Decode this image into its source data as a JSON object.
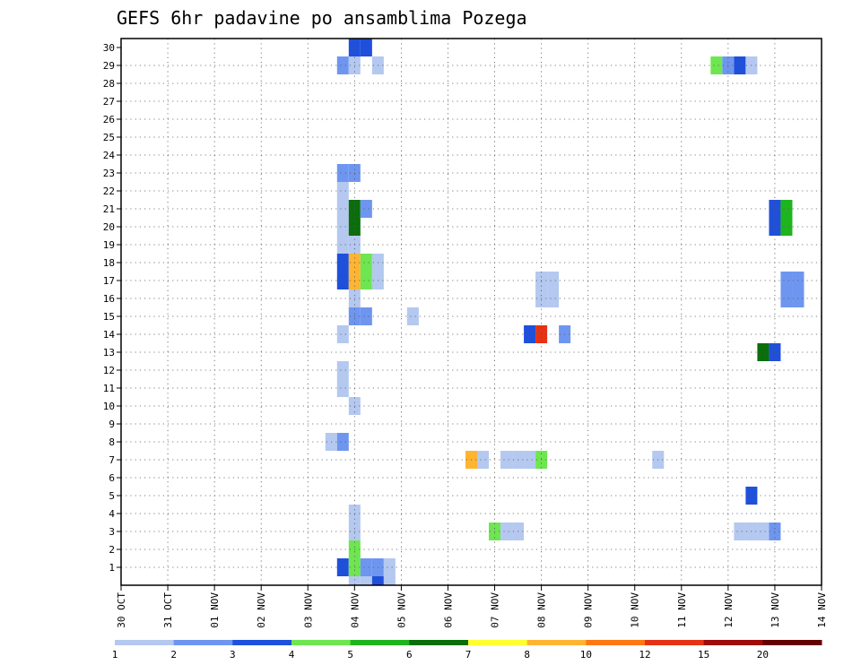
{
  "chart_data": {
    "type": "heatmap",
    "title": "GEFS 6hr padavine po ansamblima Pozega",
    "x_tick_labels": [
      "30 OCT",
      "31 OCT",
      "01 NOV",
      "02 NOV",
      "03 NOV",
      "04 NOV",
      "05 NOV",
      "06 NOV",
      "07 NOV",
      "08 NOV",
      "09 NOV",
      "10 NOV",
      "11 NOV",
      "12 NOV",
      "13 NOV",
      "14 NOV"
    ],
    "x_range_days": [
      0,
      15
    ],
    "x_step_days": 0.25,
    "y_tick_labels": [
      "1",
      "2",
      "3",
      "4",
      "5",
      "6",
      "7",
      "8",
      "9",
      "10",
      "11",
      "12",
      "13",
      "14",
      "15",
      "16",
      "17",
      "18",
      "19",
      "20",
      "21",
      "22",
      "23",
      "24",
      "25",
      "26",
      "27",
      "28",
      "29",
      "30"
    ],
    "y_range": [
      0,
      30
    ],
    "grid": true,
    "colorbar": {
      "labels": [
        "1",
        "2",
        "3",
        "4",
        "5",
        "6",
        "7",
        "8",
        "10",
        "12",
        "15",
        "20"
      ],
      "colors": [
        "#b4c8f0",
        "#6e96f0",
        "#1e50dc",
        "#6ee650",
        "#1eb41e",
        "#0a6e0a",
        "#ffff32",
        "#ffb432",
        "#ff7814",
        "#e63214",
        "#a00a0a",
        "#640000"
      ]
    },
    "cells": [
      {
        "m": 30,
        "t": [
          5,
          5.25
        ],
        "c": 3
      },
      {
        "m": 29,
        "t": [
          4.75
        ],
        "c": 2
      },
      {
        "m": 29,
        "t": [
          5
        ],
        "c": 1
      },
      {
        "m": 29,
        "t": [
          5.5
        ],
        "c": 1
      },
      {
        "m": 29,
        "t": [
          12.75
        ],
        "c": 4
      },
      {
        "m": 29,
        "t": [
          13
        ],
        "c": 2
      },
      {
        "m": 29,
        "t": [
          13.25
        ],
        "c": 3
      },
      {
        "m": 29,
        "t": [
          13.5
        ],
        "c": 1
      },
      {
        "m": 23,
        "t": [
          4.75,
          5
        ],
        "c": 2
      },
      {
        "m": 22,
        "t": [
          4.75
        ],
        "c": 1
      },
      {
        "m": 21,
        "t": [
          4.75
        ],
        "c": 1
      },
      {
        "m": 21,
        "t": [
          5
        ],
        "c": 6
      },
      {
        "m": 21,
        "t": [
          5.25
        ],
        "c": 2
      },
      {
        "m": 21,
        "t": [
          14
        ],
        "c": 3
      },
      {
        "m": 21,
        "t": [
          14.25
        ],
        "c": 5
      },
      {
        "m": 20,
        "t": [
          4.75
        ],
        "c": 1
      },
      {
        "m": 20,
        "t": [
          5
        ],
        "c": 6
      },
      {
        "m": 20,
        "t": [
          14
        ],
        "c": 3
      },
      {
        "m": 20,
        "t": [
          14.25
        ],
        "c": 5
      },
      {
        "m": 19,
        "t": [
          4.75,
          5
        ],
        "c": 1
      },
      {
        "m": 18,
        "t": [
          4.75
        ],
        "c": 3
      },
      {
        "m": 18,
        "t": [
          5
        ],
        "c": 8
      },
      {
        "m": 18,
        "t": [
          5.25
        ],
        "c": 4
      },
      {
        "m": 18,
        "t": [
          5.5
        ],
        "c": 1
      },
      {
        "m": 17,
        "t": [
          4.75
        ],
        "c": 3
      },
      {
        "m": 17,
        "t": [
          5
        ],
        "c": 8
      },
      {
        "m": 17,
        "t": [
          5.25
        ],
        "c": 4
      },
      {
        "m": 17,
        "t": [
          5.5
        ],
        "c": 1
      },
      {
        "m": 17,
        "t": [
          9,
          9.25
        ],
        "c": 1
      },
      {
        "m": 17,
        "t": [
          14.25,
          14.5
        ],
        "c": 2
      },
      {
        "m": 16,
        "t": [
          5
        ],
        "c": 1
      },
      {
        "m": 16,
        "t": [
          9,
          9.25
        ],
        "c": 1
      },
      {
        "m": 16,
        "t": [
          14.25,
          14.5
        ],
        "c": 2
      },
      {
        "m": 15,
        "t": [
          5,
          5.25
        ],
        "c": 2
      },
      {
        "m": 15,
        "t": [
          6.25
        ],
        "c": 1
      },
      {
        "m": 14,
        "t": [
          4.75
        ],
        "c": 1
      },
      {
        "m": 14,
        "t": [
          8.75
        ],
        "c": 3
      },
      {
        "m": 14,
        "t": [
          9
        ],
        "c": 10
      },
      {
        "m": 14,
        "t": [
          9.5
        ],
        "c": 2
      },
      {
        "m": 13,
        "t": [
          13.75
        ],
        "c": 6
      },
      {
        "m": 13,
        "t": [
          14
        ],
        "c": 3
      },
      {
        "m": 12,
        "t": [
          4.75
        ],
        "c": 1
      },
      {
        "m": 11,
        "t": [
          4.75
        ],
        "c": 1
      },
      {
        "m": 10,
        "t": [
          5
        ],
        "c": 1
      },
      {
        "m": 8,
        "t": [
          4.5
        ],
        "c": 1
      },
      {
        "m": 8,
        "t": [
          4.75
        ],
        "c": 2
      },
      {
        "m": 7,
        "t": [
          7.5
        ],
        "c": 8
      },
      {
        "m": 7,
        "t": [
          7.75
        ],
        "c": 1
      },
      {
        "m": 7,
        "t": [
          8.25,
          8.5,
          8.75
        ],
        "c": 1
      },
      {
        "m": 7,
        "t": [
          9
        ],
        "c": 4
      },
      {
        "m": 7,
        "t": [
          11.5
        ],
        "c": 1
      },
      {
        "m": 5,
        "t": [
          13.5
        ],
        "c": 3
      },
      {
        "m": 4,
        "t": [
          5
        ],
        "c": 1
      },
      {
        "m": 3,
        "t": [
          5
        ],
        "c": 1
      },
      {
        "m": 3,
        "t": [
          8
        ],
        "c": 4
      },
      {
        "m": 3,
        "t": [
          8.25,
          8.5
        ],
        "c": 1
      },
      {
        "m": 3,
        "t": [
          13.25,
          13.5,
          13.75
        ],
        "c": 1
      },
      {
        "m": 3,
        "t": [
          14
        ],
        "c": 2
      },
      {
        "m": 2,
        "t": [
          5
        ],
        "c": 4
      },
      {
        "m": 1,
        "t": [
          4.75
        ],
        "c": 3
      },
      {
        "m": 1,
        "t": [
          5
        ],
        "c": 4
      },
      {
        "m": 1,
        "t": [
          5.25,
          5.5
        ],
        "c": 2
      },
      {
        "m": 1,
        "t": [
          5.75
        ],
        "c": 1
      },
      {
        "m": 0,
        "t": [
          5
        ],
        "c": 1
      },
      {
        "m": 0,
        "t": [
          5.25
        ],
        "c": 1
      },
      {
        "m": 0,
        "t": [
          5.5
        ],
        "c": 3
      },
      {
        "m": 0,
        "t": [
          5.75
        ],
        "c": 1
      }
    ]
  }
}
